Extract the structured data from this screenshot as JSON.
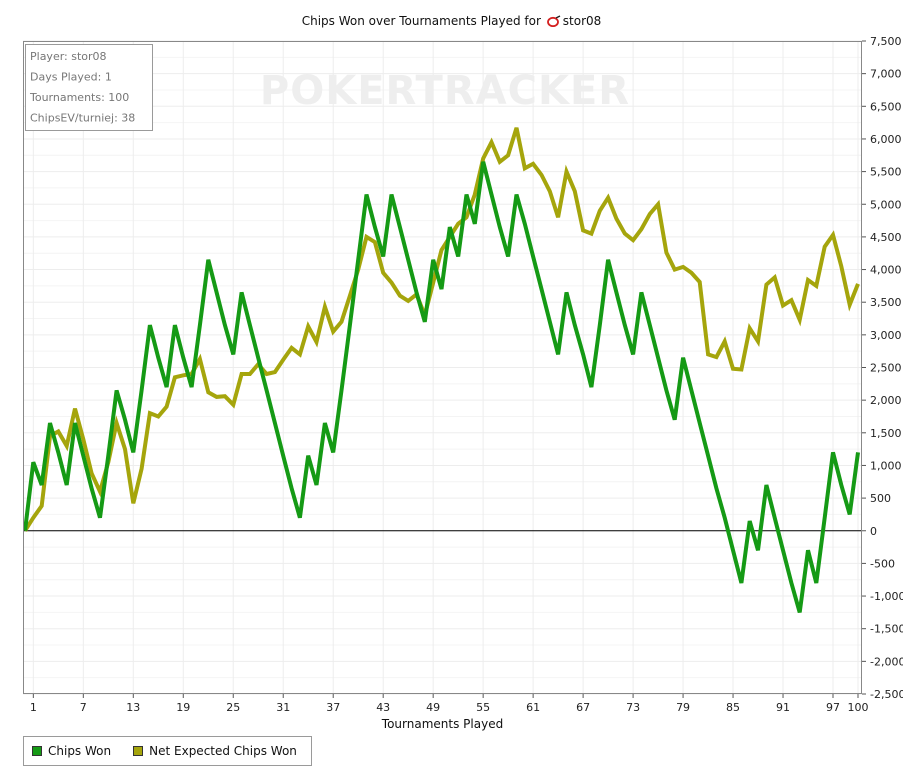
{
  "chart_data": {
    "type": "line",
    "title_prefix": "Chips Won over Tournaments Played for",
    "title_player": "stor08",
    "xlabel": "Tournaments Played",
    "ylabel": "",
    "watermark": "POKERTRACKER",
    "xlim": [
      0,
      100
    ],
    "ylim": [
      -2500,
      7500
    ],
    "y_ticks": [
      -2500,
      -2000,
      -1500,
      -1000,
      -500,
      0,
      500,
      1000,
      1500,
      2000,
      2500,
      3000,
      3500,
      4000,
      4500,
      5000,
      5500,
      6000,
      6500,
      7000,
      7500
    ],
    "y_tick_labels": [
      "-2,500",
      "-2,000",
      "-1,500",
      "-1,000",
      "-500",
      "0",
      "500",
      "1,000",
      "1,500",
      "2,000",
      "2,500",
      "3,000",
      "3,500",
      "4,000",
      "4,500",
      "5,000",
      "5,500",
      "6,000",
      "6,500",
      "7,000",
      "7,500"
    ],
    "x_ticks": [
      1,
      7,
      13,
      19,
      25,
      31,
      37,
      43,
      49,
      55,
      61,
      67,
      73,
      79,
      85,
      91,
      97,
      100
    ],
    "x_tick_labels": [
      "1",
      "7",
      "13",
      "19",
      "25",
      "31",
      "37",
      "43",
      "49",
      "55",
      "61",
      "67",
      "73",
      "79",
      "85",
      "91",
      "97",
      "100"
    ],
    "grid": true,
    "info_box": [
      {
        "label": "Player",
        "value": "stor08"
      },
      {
        "label": "Days Played",
        "value": "1"
      },
      {
        "label": "Tournaments",
        "value": "100"
      },
      {
        "label": "ChipsEV/turniej",
        "value": "38"
      }
    ],
    "legend_position": "bottom-left",
    "series": [
      {
        "name": "Chips Won",
        "color": "#159a15",
        "x": [
          0,
          1,
          2,
          3,
          4,
          5,
          6,
          7,
          8,
          9,
          10,
          11,
          12,
          13,
          14,
          15,
          16,
          17,
          18,
          19,
          20,
          21,
          22,
          23,
          24,
          25,
          26,
          27,
          28,
          29,
          30,
          31,
          32,
          33,
          34,
          35,
          36,
          37,
          38,
          39,
          40,
          41,
          42,
          43,
          44,
          45,
          46,
          47,
          48,
          49,
          50,
          51,
          52,
          53,
          54,
          55,
          56,
          57,
          58,
          59,
          60,
          61,
          62,
          63,
          64,
          65,
          66,
          67,
          68,
          69,
          70,
          71,
          72,
          73,
          74,
          75,
          76,
          77,
          78,
          79,
          80,
          81,
          82,
          83,
          84,
          85,
          86,
          87,
          88,
          89,
          90,
          91,
          92,
          93,
          94,
          95,
          96,
          97,
          98,
          99,
          100
        ],
        "y": [
          0,
          1050,
          700,
          1650,
          1200,
          700,
          1650,
          1150,
          650,
          200,
          1150,
          2150,
          1700,
          1200,
          2150,
          3150,
          2650,
          2200,
          3150,
          2650,
          2200,
          3150,
          4150,
          3650,
          3150,
          2700,
          3650,
          3150,
          2650,
          2150,
          1650,
          1150,
          650,
          200,
          1150,
          700,
          1650,
          1200,
          2150,
          3150,
          4150,
          5150,
          4650,
          4200,
          5150,
          4650,
          4150,
          3650,
          3200,
          4150,
          3700,
          4650,
          4200,
          5150,
          4700,
          5650,
          5150,
          4650,
          4200,
          5150,
          4700,
          4200,
          3700,
          3200,
          2700,
          3650,
          3150,
          2700,
          2200,
          3150,
          4150,
          3650,
          3150,
          2700,
          3650,
          3150,
          2650,
          2150,
          1700,
          2650,
          2150,
          1650,
          1150,
          650,
          200,
          -300,
          -800,
          150,
          -300,
          700,
          200,
          -300,
          -800,
          -1250,
          -300,
          -800,
          200,
          1200,
          700,
          250,
          1200
        ]
      },
      {
        "name": "Net Expected Chips Won",
        "color": "#a5a50c",
        "x": [
          0,
          1,
          2,
          3,
          4,
          5,
          6,
          7,
          8,
          9,
          10,
          11,
          12,
          13,
          14,
          15,
          16,
          17,
          18,
          19,
          20,
          21,
          22,
          23,
          24,
          25,
          26,
          27,
          28,
          29,
          30,
          31,
          32,
          33,
          34,
          35,
          36,
          37,
          38,
          39,
          40,
          41,
          42,
          43,
          44,
          45,
          46,
          47,
          48,
          49,
          50,
          51,
          52,
          53,
          54,
          55,
          56,
          57,
          58,
          59,
          60,
          61,
          62,
          63,
          64,
          65,
          66,
          67,
          68,
          69,
          70,
          71,
          72,
          73,
          74,
          75,
          76,
          77,
          78,
          79,
          80,
          81,
          82,
          83,
          84,
          85,
          86,
          87,
          88,
          89,
          90,
          91,
          92,
          93,
          94,
          95,
          96,
          97,
          98,
          99,
          100
        ],
        "y": [
          0,
          200,
          380,
          1450,
          1520,
          1300,
          1870,
          1400,
          880,
          600,
          1050,
          1650,
          1250,
          420,
          950,
          1800,
          1750,
          1900,
          2350,
          2380,
          2400,
          2630,
          2120,
          2050,
          2060,
          1930,
          2400,
          2400,
          2550,
          2400,
          2430,
          2620,
          2800,
          2700,
          3130,
          2890,
          3430,
          3050,
          3200,
          3600,
          4000,
          4500,
          4420,
          3950,
          3800,
          3600,
          3520,
          3620,
          3300,
          3800,
          4300,
          4500,
          4700,
          4800,
          5150,
          5700,
          5950,
          5650,
          5750,
          6170,
          5550,
          5620,
          5450,
          5200,
          4800,
          5500,
          5200,
          4600,
          4550,
          4900,
          5100,
          4780,
          4550,
          4450,
          4620,
          4850,
          5000,
          4260,
          4000,
          4040,
          3950,
          3810,
          2700,
          2660,
          2900,
          2480,
          2470,
          3100,
          2900,
          3770,
          3880,
          3450,
          3530,
          3230,
          3840,
          3750,
          4350,
          4530,
          4050,
          3460,
          3780
        ]
      }
    ]
  }
}
